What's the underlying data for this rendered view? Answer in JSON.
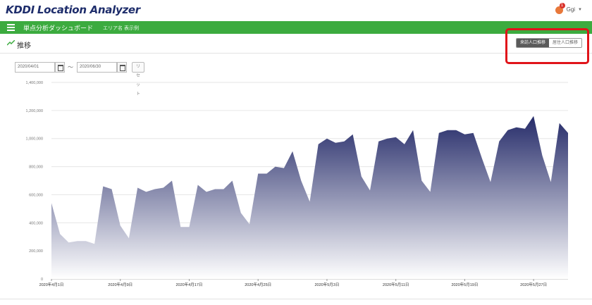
{
  "header": {
    "logo_brand": "KDDI",
    "logo_product": "Location Analyzer",
    "user_name": "Ggi",
    "notification_count": "1"
  },
  "greenbar": {
    "title": "単点分析ダッシュボード",
    "subtitle": "エリア名 表示例"
  },
  "section": {
    "title": "推移",
    "toggle_active": "来訪人口推移",
    "toggle_inactive": "居住人口推移"
  },
  "filters": {
    "start_date": "2020/04/01",
    "end_date": "2020/06/30",
    "separator": "～",
    "reset_label": "リセット"
  },
  "colors": {
    "brand_green": "#3cab3f",
    "area_top": "#252b69",
    "area_bottom": "#ffffff",
    "highlight": "#e0141a"
  },
  "chart_data": {
    "type": "area",
    "ylim": [
      0,
      1400000
    ],
    "y_ticks": [
      "0",
      "200,000",
      "400,000",
      "600,000",
      "800,000",
      "1,000,000",
      "1,200,000",
      "1,400,000"
    ],
    "x_tick_labels": [
      "2020年4月1日",
      "2020年4月9日",
      "2020年4月17日",
      "2020年4月25日",
      "2020年5月3日",
      "2020年5月11日",
      "2020年5月19日",
      "2020年5月27日"
    ],
    "x_tick_index": [
      0,
      8,
      16,
      24,
      32,
      40,
      48,
      56
    ],
    "grid": true,
    "series": [
      {
        "values": [
          540000,
          320000,
          260000,
          270000,
          270000,
          250000,
          660000,
          640000,
          380000,
          290000,
          650000,
          620000,
          640000,
          650000,
          700000,
          370000,
          370000,
          670000,
          620000,
          640000,
          640000,
          700000,
          470000,
          390000,
          750000,
          750000,
          800000,
          790000,
          910000,
          700000,
          550000,
          960000,
          1000000,
          970000,
          980000,
          1030000,
          730000,
          630000,
          980000,
          1000000,
          1010000,
          960000,
          1060000,
          700000,
          620000,
          1040000,
          1060000,
          1060000,
          1030000,
          1040000,
          860000,
          690000,
          980000,
          1060000,
          1080000,
          1070000,
          1160000,
          880000,
          690000,
          1110000,
          1040000
        ]
      }
    ]
  }
}
